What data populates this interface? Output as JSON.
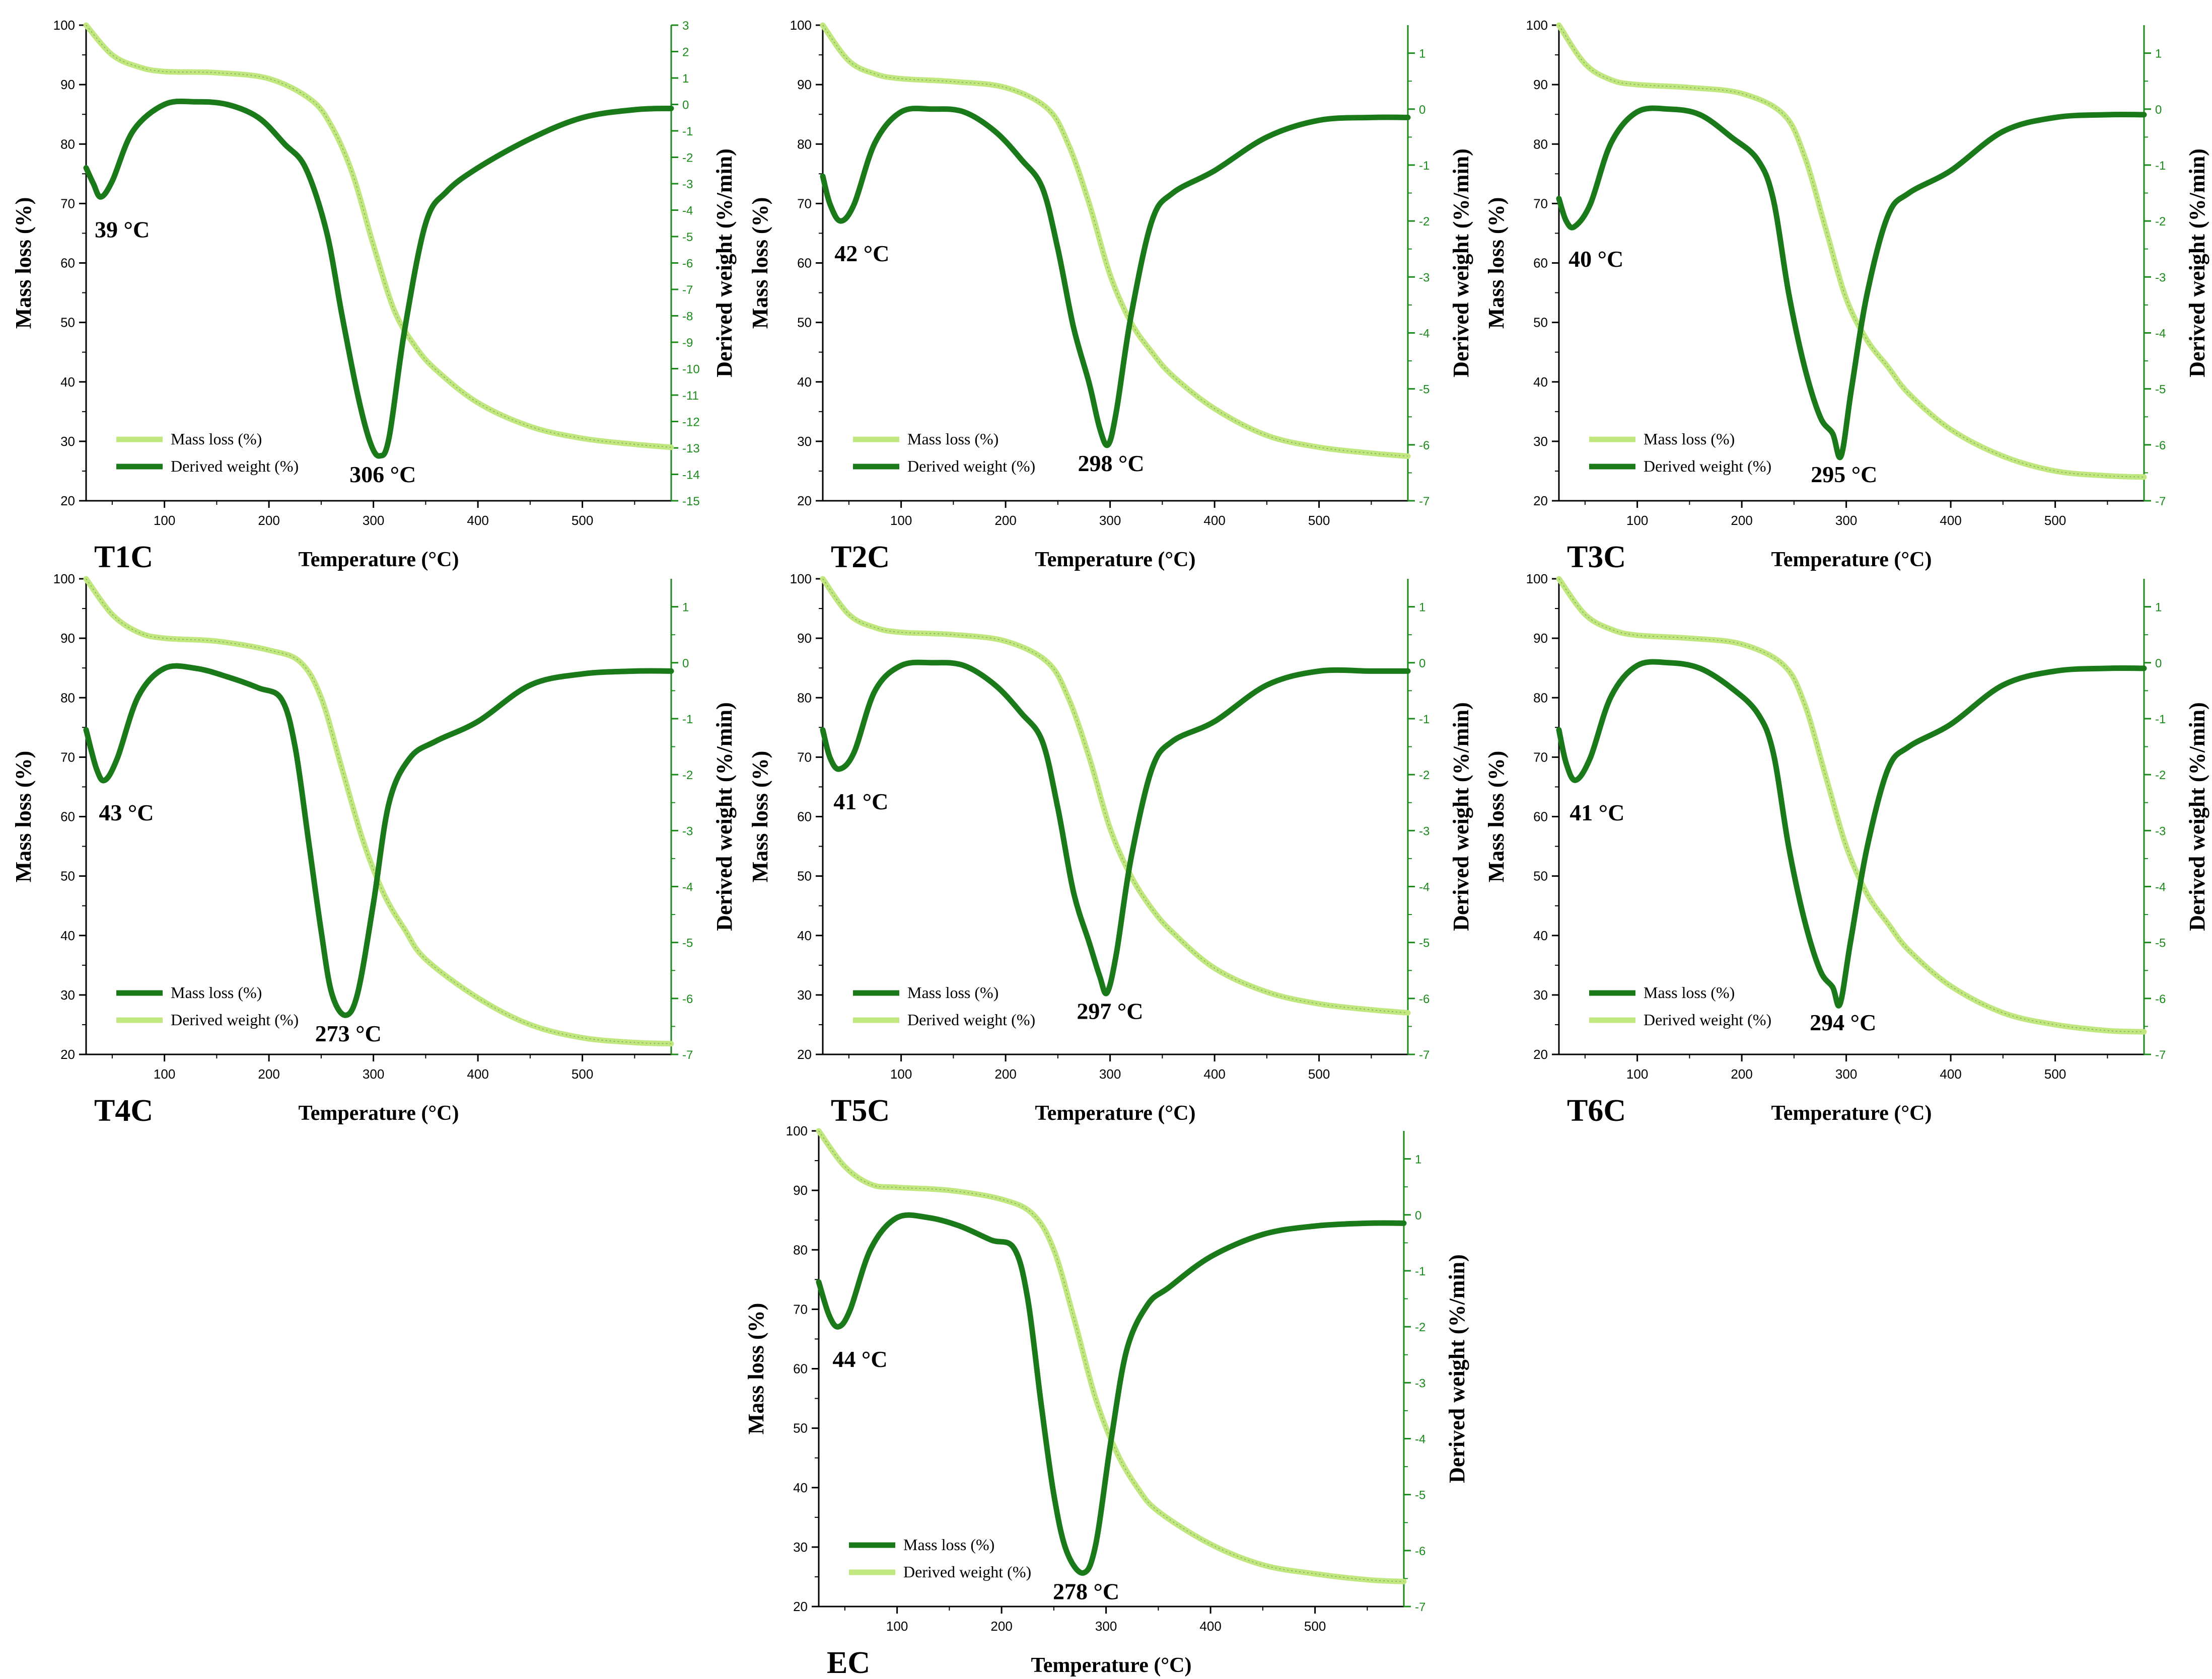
{
  "figure": {
    "xlabel": "Temperature (°C)",
    "ylabel_left": "Mass loss (%)",
    "ylabel_right": "Derived weight (%/min)",
    "series_names": [
      "Mass loss (%)",
      "Derived weight (%)"
    ],
    "colors": {
      "mass": "#c0e87f",
      "deriv": "#1a7a1a",
      "axis_right": "#1a8a1a",
      "axis_left": "#000000"
    }
  },
  "chart_data": [
    {
      "type": "line",
      "panel_label": "T1C",
      "legend_order": [
        "mass",
        "deriv"
      ],
      "xlim": [
        25,
        585
      ],
      "x_ticks": [
        100,
        200,
        300,
        400,
        500
      ],
      "ylim_left": [
        20,
        100
      ],
      "y_ticks_left": [
        20,
        30,
        40,
        50,
        60,
        70,
        80,
        90,
        100
      ],
      "ylim_right": [
        -15,
        3
      ],
      "y_ticks_right": [
        -15,
        -14,
        -13,
        -12,
        -11,
        -10,
        -9,
        -8,
        -7,
        -6,
        -5,
        -4,
        -3,
        -2,
        -1,
        0,
        1,
        2,
        3
      ],
      "series": [
        {
          "name": "Mass loss (%)",
          "axis": "left",
          "x": [
            25,
            50,
            75,
            100,
            150,
            200,
            240,
            260,
            280,
            300,
            320,
            340,
            360,
            400,
            450,
            500,
            550,
            585
          ],
          "y": [
            100,
            95,
            93,
            92.2,
            92,
            91,
            87.5,
            83,
            75,
            63,
            52,
            46,
            42,
            36.5,
            32.5,
            30.5,
            29.5,
            29
          ]
        },
        {
          "name": "Derived weight (%)",
          "axis": "right",
          "x": [
            25,
            32,
            39,
            50,
            70,
            100,
            130,
            160,
            190,
            215,
            235,
            255,
            270,
            285,
            297,
            306,
            315,
            330,
            350,
            370,
            400,
            450,
            500,
            550,
            585
          ],
          "y": [
            -2.4,
            -3.0,
            -3.5,
            -2.9,
            -1.0,
            0.0,
            0.1,
            0.0,
            -0.5,
            -1.5,
            -2.4,
            -4.8,
            -8.0,
            -11.0,
            -12.8,
            -13.3,
            -12.6,
            -8.5,
            -4.5,
            -3.3,
            -2.4,
            -1.3,
            -0.5,
            -0.2,
            -0.15
          ]
        }
      ],
      "annotations": [
        {
          "text": "39 °C",
          "x": 39,
          "y": -3.5
        },
        {
          "text": "306 °C",
          "x": 306,
          "y": -13.3
        }
      ]
    },
    {
      "type": "line",
      "panel_label": "T2C",
      "legend_order": [
        "mass",
        "deriv"
      ],
      "xlim": [
        25,
        585
      ],
      "x_ticks": [
        100,
        200,
        300,
        400,
        500
      ],
      "ylim_left": [
        20,
        100
      ],
      "y_ticks_left": [
        20,
        30,
        40,
        50,
        60,
        70,
        80,
        90,
        100
      ],
      "ylim_right": [
        -7,
        1.5
      ],
      "y_ticks_right": [
        -7,
        -6,
        -5,
        -4,
        -3,
        -2,
        -1,
        0,
        1
      ],
      "series": [
        {
          "name": "Mass loss (%)",
          "axis": "left",
          "x": [
            25,
            50,
            75,
            100,
            150,
            200,
            240,
            260,
            280,
            300,
            320,
            340,
            360,
            400,
            450,
            500,
            550,
            585
          ],
          "y": [
            100,
            94,
            91.8,
            91,
            90.5,
            89.5,
            86,
            80,
            70,
            58,
            50,
            45,
            41,
            35.5,
            31,
            29,
            28,
            27.5
          ]
        },
        {
          "name": "Derived weight (%)",
          "axis": "right",
          "x": [
            25,
            32,
            42,
            55,
            75,
            100,
            130,
            160,
            190,
            215,
            235,
            250,
            265,
            280,
            290,
            298,
            306,
            320,
            340,
            360,
            400,
            450,
            500,
            550,
            585
          ],
          "y": [
            -1.2,
            -1.7,
            -2.0,
            -1.7,
            -0.6,
            -0.05,
            0.0,
            -0.05,
            -0.4,
            -0.9,
            -1.4,
            -2.5,
            -3.9,
            -4.9,
            -5.7,
            -6.0,
            -5.4,
            -3.7,
            -2.0,
            -1.5,
            -1.1,
            -0.5,
            -0.2,
            -0.15,
            -0.15
          ]
        }
      ],
      "annotations": [
        {
          "text": "42 °C",
          "x": 42,
          "y": -2.0
        },
        {
          "text": "298 °C",
          "x": 298,
          "y": -6.0
        }
      ]
    },
    {
      "type": "line",
      "panel_label": "T3C",
      "legend_order": [
        "mass",
        "deriv"
      ],
      "xlim": [
        25,
        585
      ],
      "x_ticks": [
        100,
        200,
        300,
        400,
        500
      ],
      "ylim_left": [
        20,
        100
      ],
      "y_ticks_left": [
        20,
        30,
        40,
        50,
        60,
        70,
        80,
        90,
        100
      ],
      "ylim_right": [
        -7,
        1.5
      ],
      "y_ticks_right": [
        -7,
        -6,
        -5,
        -4,
        -3,
        -2,
        -1,
        0,
        1
      ],
      "series": [
        {
          "name": "Mass loss (%)",
          "axis": "left",
          "x": [
            25,
            50,
            75,
            100,
            150,
            200,
            240,
            260,
            280,
            300,
            320,
            340,
            360,
            400,
            450,
            500,
            550,
            585
          ],
          "y": [
            100,
            93.5,
            90.8,
            90,
            89.5,
            88.5,
            85,
            78,
            66,
            54,
            47,
            42.5,
            38,
            32,
            27.5,
            25,
            24.2,
            24
          ]
        },
        {
          "name": "Derived weight (%)",
          "axis": "right",
          "x": [
            25,
            32,
            40,
            55,
            75,
            100,
            130,
            160,
            190,
            215,
            230,
            245,
            260,
            275,
            287,
            295,
            305,
            320,
            340,
            360,
            400,
            450,
            500,
            550,
            585
          ],
          "y": [
            -1.6,
            -2.0,
            -2.1,
            -1.7,
            -0.6,
            -0.05,
            0.0,
            -0.1,
            -0.5,
            -0.9,
            -1.6,
            -3.3,
            -4.6,
            -5.5,
            -5.8,
            -6.2,
            -5.0,
            -3.3,
            -1.9,
            -1.5,
            -1.1,
            -0.4,
            -0.15,
            -0.1,
            -0.1
          ]
        }
      ],
      "annotations": [
        {
          "text": "40 °C",
          "x": 40,
          "y": -2.1
        },
        {
          "text": "295 °C",
          "x": 295,
          "y": -6.2
        }
      ]
    },
    {
      "type": "line",
      "panel_label": "T4C",
      "legend_order": [
        "deriv",
        "mass"
      ],
      "xlim": [
        25,
        585
      ],
      "x_ticks": [
        100,
        200,
        300,
        400,
        500
      ],
      "ylim_left": [
        20,
        100
      ],
      "y_ticks_left": [
        20,
        30,
        40,
        50,
        60,
        70,
        80,
        90,
        100
      ],
      "ylim_right": [
        -7,
        1.5
      ],
      "y_ticks_right": [
        -7,
        -6,
        -5,
        -4,
        -3,
        -2,
        -1,
        0,
        1
      ],
      "series": [
        {
          "name": "Mass loss (%)",
          "axis": "left",
          "x": [
            25,
            50,
            75,
            100,
            150,
            200,
            230,
            250,
            270,
            290,
            310,
            330,
            350,
            400,
            450,
            500,
            550,
            585
          ],
          "y": [
            100,
            94,
            91,
            90,
            89.5,
            88,
            86,
            80,
            68,
            56,
            47,
            41,
            36,
            29.5,
            25,
            22.8,
            22,
            21.8
          ]
        },
        {
          "name": "Derived weight (%)",
          "axis": "right",
          "x": [
            25,
            35,
            43,
            55,
            75,
            100,
            130,
            160,
            190,
            212,
            225,
            238,
            250,
            260,
            273,
            285,
            300,
            315,
            335,
            360,
            400,
            450,
            500,
            550,
            585
          ],
          "y": [
            -1.2,
            -1.9,
            -2.1,
            -1.7,
            -0.6,
            -0.1,
            -0.1,
            -0.25,
            -0.45,
            -0.65,
            -1.5,
            -3.2,
            -4.8,
            -5.9,
            -6.3,
            -5.9,
            -4.3,
            -2.5,
            -1.7,
            -1.4,
            -1.05,
            -0.4,
            -0.2,
            -0.15,
            -0.15
          ]
        }
      ],
      "annotations": [
        {
          "text": "43 °C",
          "x": 43,
          "y": -2.1
        },
        {
          "text": "273 °C",
          "x": 273,
          "y": -6.3
        }
      ]
    },
    {
      "type": "line",
      "panel_label": "T5C",
      "legend_order": [
        "deriv",
        "mass"
      ],
      "xlim": [
        25,
        585
      ],
      "x_ticks": [
        100,
        200,
        300,
        400,
        500
      ],
      "ylim_left": [
        20,
        100
      ],
      "y_ticks_left": [
        20,
        30,
        40,
        50,
        60,
        70,
        80,
        90,
        100
      ],
      "ylim_right": [
        -7,
        1.5
      ],
      "y_ticks_right": [
        -7,
        -6,
        -5,
        -4,
        -3,
        -2,
        -1,
        0,
        1
      ],
      "series": [
        {
          "name": "Mass loss (%)",
          "axis": "left",
          "x": [
            25,
            50,
            75,
            100,
            150,
            200,
            240,
            260,
            280,
            300,
            320,
            340,
            360,
            400,
            450,
            500,
            550,
            585
          ],
          "y": [
            100,
            94,
            91.8,
            91,
            90.6,
            89.5,
            86,
            80,
            70,
            58,
            50,
            44.5,
            40.5,
            34.5,
            30.5,
            28.5,
            27.5,
            27
          ]
        },
        {
          "name": "Derived weight (%)",
          "axis": "right",
          "x": [
            25,
            32,
            41,
            55,
            75,
            100,
            130,
            160,
            190,
            215,
            235,
            250,
            265,
            280,
            290,
            297,
            306,
            320,
            340,
            360,
            400,
            450,
            500,
            550,
            585
          ],
          "y": [
            -1.2,
            -1.7,
            -1.9,
            -1.6,
            -0.5,
            -0.05,
            0.0,
            -0.05,
            -0.4,
            -0.9,
            -1.4,
            -2.6,
            -4.1,
            -5.0,
            -5.6,
            -5.9,
            -5.2,
            -3.5,
            -1.9,
            -1.4,
            -1.05,
            -0.4,
            -0.15,
            -0.15,
            -0.15
          ]
        }
      ],
      "annotations": [
        {
          "text": "41 °C",
          "x": 41,
          "y": -1.9
        },
        {
          "text": "297 °C",
          "x": 297,
          "y": -5.9
        }
      ]
    },
    {
      "type": "line",
      "panel_label": "T6C",
      "legend_order": [
        "deriv",
        "mass"
      ],
      "xlim": [
        25,
        585
      ],
      "x_ticks": [
        100,
        200,
        300,
        400,
        500
      ],
      "ylim_left": [
        20,
        100
      ],
      "y_ticks_left": [
        20,
        30,
        40,
        50,
        60,
        70,
        80,
        90,
        100
      ],
      "ylim_right": [
        -7,
        1.5
      ],
      "y_ticks_right": [
        -7,
        -6,
        -5,
        -4,
        -3,
        -2,
        -1,
        0,
        1
      ],
      "series": [
        {
          "name": "Mass loss (%)",
          "axis": "left",
          "x": [
            25,
            50,
            75,
            100,
            150,
            200,
            240,
            260,
            280,
            300,
            320,
            340,
            360,
            400,
            450,
            500,
            550,
            585
          ],
          "y": [
            100,
            94,
            91.5,
            90.5,
            90,
            89,
            85.5,
            79,
            67,
            55,
            47,
            42,
            37.5,
            31.5,
            27,
            25,
            24,
            23.8
          ]
        },
        {
          "name": "Derived weight (%)",
          "axis": "right",
          "x": [
            25,
            32,
            41,
            55,
            75,
            100,
            130,
            160,
            190,
            215,
            230,
            245,
            260,
            275,
            287,
            294,
            304,
            320,
            340,
            360,
            400,
            450,
            500,
            550,
            585
          ],
          "y": [
            -1.2,
            -1.8,
            -2.1,
            -1.7,
            -0.6,
            -0.05,
            0.0,
            -0.1,
            -0.45,
            -0.9,
            -1.6,
            -3.3,
            -4.6,
            -5.5,
            -5.8,
            -6.1,
            -5.0,
            -3.3,
            -1.9,
            -1.5,
            -1.1,
            -0.4,
            -0.15,
            -0.1,
            -0.1
          ]
        }
      ],
      "annotations": [
        {
          "text": "41 °C",
          "x": 41,
          "y": -2.1
        },
        {
          "text": "294 °C",
          "x": 294,
          "y": -6.1
        }
      ]
    },
    {
      "type": "line",
      "panel_label": "EC",
      "legend_order": [
        "deriv",
        "mass"
      ],
      "xlim": [
        25,
        585
      ],
      "x_ticks": [
        100,
        200,
        300,
        400,
        500
      ],
      "ylim_left": [
        20,
        100
      ],
      "y_ticks_left": [
        20,
        30,
        40,
        50,
        60,
        70,
        80,
        90,
        100
      ],
      "ylim_right": [
        -7,
        1.5
      ],
      "y_ticks_right": [
        -7,
        -6,
        -5,
        -4,
        -3,
        -2,
        -1,
        0,
        1
      ],
      "series": [
        {
          "name": "Mass loss (%)",
          "axis": "left",
          "x": [
            25,
            50,
            75,
            100,
            150,
            200,
            230,
            250,
            270,
            290,
            310,
            330,
            350,
            400,
            450,
            500,
            550,
            585
          ],
          "y": [
            100,
            94,
            91,
            90.5,
            90,
            88.5,
            86,
            80,
            68,
            55,
            46,
            40,
            36,
            30.5,
            27,
            25.5,
            24.5,
            24.2
          ]
        },
        {
          "name": "Derived weight (%)",
          "axis": "right",
          "x": [
            25,
            35,
            44,
            55,
            75,
            100,
            130,
            160,
            190,
            212,
            225,
            238,
            250,
            262,
            278,
            290,
            305,
            320,
            340,
            360,
            400,
            450,
            500,
            550,
            585
          ],
          "y": [
            -1.2,
            -1.8,
            -2.0,
            -1.7,
            -0.6,
            -0.05,
            -0.05,
            -0.2,
            -0.45,
            -0.6,
            -1.5,
            -3.4,
            -5.0,
            -6.0,
            -6.4,
            -5.9,
            -4.0,
            -2.4,
            -1.6,
            -1.3,
            -0.75,
            -0.35,
            -0.2,
            -0.15,
            -0.15
          ]
        }
      ],
      "annotations": [
        {
          "text": "44 °C",
          "x": 44,
          "y": -2.0
        },
        {
          "text": "278 °C",
          "x": 278,
          "y": -6.4
        }
      ]
    }
  ]
}
